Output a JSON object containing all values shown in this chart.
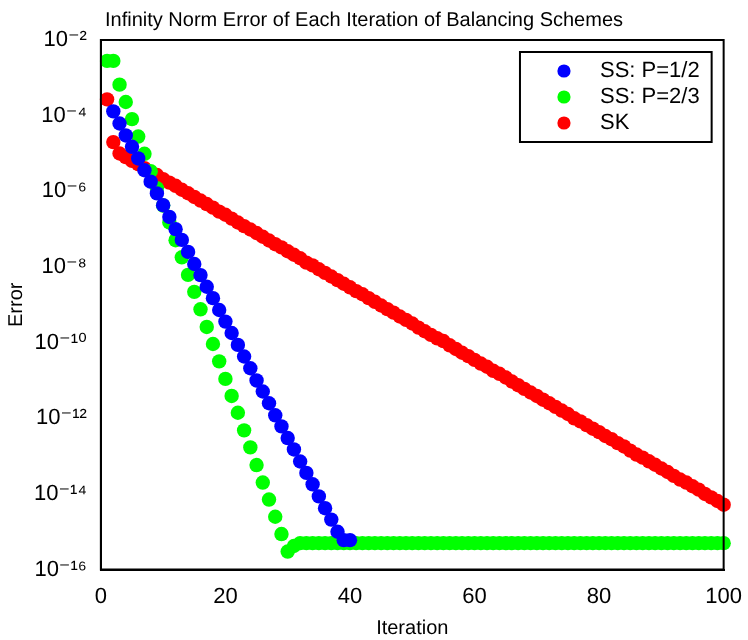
{
  "chart_data": {
    "type": "scatter",
    "title": "Infinity Norm Error of Each Iteration of Balancing Schemes",
    "xlabel": "Iteration",
    "ylabel": "Error",
    "log": "y",
    "grid": false,
    "legend": "top right",
    "marker": "circle",
    "xlim": [
      0,
      100
    ],
    "xticks": [
      0,
      20,
      40,
      60,
      80,
      100
    ],
    "ylim": [
      1e-16,
      0.01
    ],
    "yticks": [
      {
        "value": 1e-16,
        "label": "10⁻¹⁶"
      },
      {
        "value": 1e-14,
        "label": "10⁻¹⁴"
      },
      {
        "value": 1e-12,
        "label": "10⁻¹²"
      },
      {
        "value": 1e-10,
        "label": "10⁻¹⁰"
      },
      {
        "value": 1e-08,
        "label": "10⁻⁸"
      },
      {
        "value": 1e-06,
        "label": "10⁻⁶"
      },
      {
        "value": 0.0001,
        "label": "10⁻⁴"
      },
      {
        "value": 0.01,
        "label": "10⁻²"
      }
    ],
    "series": [
      {
        "name": "SS: P=1/2",
        "color": "#0000ff",
        "x": [
          2,
          3,
          4,
          5,
          6,
          7,
          8,
          9,
          10,
          11,
          12,
          13,
          14,
          15,
          16,
          17,
          18,
          19,
          20,
          21,
          22,
          23,
          24,
          25,
          26,
          27,
          28,
          29,
          30,
          31,
          32,
          33,
          34,
          35,
          36,
          37,
          38,
          39,
          40
        ],
        "values": [
          0.00013,
          6.2e-05,
          3e-05,
          1.5e-05,
          7.4e-06,
          3.6e-06,
          1.8e-06,
          8.8e-07,
          4.3e-07,
          2.1e-07,
          1e-07,
          5.2e-08,
          2.5e-08,
          1.2e-08,
          6.1e-09,
          3e-09,
          1.5e-09,
          7.3e-10,
          3.6e-10,
          1.8e-10,
          8.7e-11,
          4.3e-11,
          2.1e-11,
          1e-11,
          5.1e-12,
          2.5e-12,
          1.2e-12,
          6.1e-13,
          3e-13,
          1.5e-13,
          7.2e-14,
          3.6e-14,
          1.8e-14,
          8.6e-15,
          4.2e-15,
          2.1e-15,
          1e-15,
          6e-16,
          6e-16
        ]
      },
      {
        "name": "SS: P=2/3",
        "color": "#00ff00",
        "x": [
          1,
          2,
          3,
          4,
          5,
          6,
          7,
          8,
          9,
          10,
          11,
          12,
          13,
          14,
          15,
          16,
          17,
          18,
          19,
          20,
          21,
          22,
          23,
          24,
          25,
          26,
          27,
          28,
          29,
          30,
          31,
          32,
          33,
          34,
          35,
          36,
          37,
          38,
          39,
          40,
          41,
          42,
          43,
          44,
          45,
          46,
          47,
          48,
          49,
          50,
          51,
          52,
          53,
          54,
          55,
          56,
          57,
          58,
          59,
          60,
          61,
          62,
          63,
          64,
          65,
          66,
          67,
          68,
          69,
          70,
          71,
          72,
          73,
          74,
          75,
          76,
          77,
          78,
          79,
          80,
          81,
          82,
          83,
          84,
          85,
          86,
          87,
          88,
          89,
          90,
          91,
          92,
          93,
          94,
          95,
          96,
          97,
          98,
          99,
          100
        ],
        "values": [
          0.0028,
          0.0028,
          0.00066,
          0.00023,
          8.1e-05,
          2.8e-05,
          9.8e-06,
          3.4e-06,
          1.2e-06,
          4.2e-07,
          1.5e-07,
          5.1e-08,
          1.8e-08,
          6.2e-09,
          2.2e-09,
          7.6e-10,
          2.6e-10,
          9.2e-11,
          3.2e-11,
          1.1e-11,
          3.9e-12,
          1.4e-12,
          4.8e-13,
          1.7e-13,
          5.8e-14,
          2e-14,
          7.1e-15,
          2.5e-15,
          8.7e-16,
          3e-16,
          4.2e-16,
          5e-16,
          5e-16,
          5e-16,
          5e-16,
          5e-16,
          5e-16,
          5e-16,
          5e-16,
          5e-16,
          5e-16,
          5e-16,
          5e-16,
          5e-16,
          5e-16,
          5e-16,
          5e-16,
          5e-16,
          5e-16,
          5e-16,
          5e-16,
          5e-16,
          5e-16,
          5e-16,
          5e-16,
          5e-16,
          5e-16,
          5e-16,
          5e-16,
          5e-16,
          5e-16,
          5e-16,
          5e-16,
          5e-16,
          5e-16,
          5e-16,
          5e-16,
          5e-16,
          5e-16,
          5e-16,
          5e-16,
          5e-16,
          5e-16,
          5e-16,
          5e-16,
          5e-16,
          5e-16,
          5e-16,
          5e-16,
          5e-16,
          5e-16,
          5e-16,
          5e-16,
          5e-16,
          5e-16,
          5e-16,
          5e-16,
          5e-16,
          5e-16,
          5e-16,
          5e-16,
          5e-16,
          5e-16,
          5e-16,
          5e-16,
          5e-16,
          5e-16,
          5e-16,
          5e-16,
          5e-16
        ]
      },
      {
        "name": "SK",
        "color": "#ff0000",
        "x": [
          1,
          2,
          3,
          4,
          5,
          6,
          7,
          8,
          9,
          10,
          11,
          12,
          13,
          14,
          15,
          16,
          17,
          18,
          19,
          20,
          21,
          22,
          23,
          24,
          25,
          26,
          27,
          28,
          29,
          30,
          31,
          32,
          33,
          34,
          35,
          36,
          37,
          38,
          39,
          40,
          41,
          42,
          43,
          44,
          45,
          46,
          47,
          48,
          49,
          50,
          51,
          52,
          53,
          54,
          55,
          56,
          57,
          58,
          59,
          60,
          61,
          62,
          63,
          64,
          65,
          66,
          67,
          68,
          69,
          70,
          71,
          72,
          73,
          74,
          75,
          76,
          77,
          78,
          79,
          80,
          81,
          82,
          83,
          84,
          85,
          86,
          87,
          88,
          89,
          90,
          91,
          92,
          93,
          94,
          95,
          96,
          97,
          98,
          99,
          100
        ],
        "values": [
          0.00027,
          2e-05,
          1e-05,
          8e-06,
          6.4e-06,
          5.2e-06,
          4.1e-06,
          null,
          2.7e-06,
          2.1e-06,
          1.7e-06,
          1.4e-06,
          1.1e-06,
          8.9e-07,
          7.1e-07,
          5.7e-07,
          4.6e-07,
          3.7e-07,
          2.9e-07,
          2.4e-07,
          1.9e-07,
          1.5e-07,
          1.2e-07,
          9.8e-08,
          7.9e-08,
          6.3e-08,
          5e-08,
          4e-08,
          3.3e-08,
          2.6e-08,
          2.1e-08,
          1.7e-08,
          1.3e-08,
          1.1e-08,
          8.7e-09,
          7e-09,
          5.6e-09,
          4.5e-09,
          3.6e-09,
          2.9e-09,
          2.3e-09,
          1.9e-09,
          1.5e-09,
          1.2e-09,
          9.6e-10,
          7.7e-10,
          6.2e-10,
          4.9e-10,
          4e-10,
          3.2e-10,
          2.5e-10,
          2e-10,
          1.6e-10,
          1.3e-10,
          1.1e-10,
          8.5e-11,
          6.8e-11,
          5.4e-11,
          4.4e-11,
          3.5e-11,
          2.8e-11,
          2.3e-11,
          1.8e-11,
          1.5e-11,
          1.2e-11,
          9.4e-12,
          7.5e-12,
          6e-12,
          4.8e-12,
          3.9e-12,
          3.1e-12,
          2.5e-12,
          2e-12,
          1.6e-12,
          1.3e-12,
          1e-12,
          8.3e-13,
          6.6e-13,
          5.3e-13,
          4.3e-13,
          3.4e-13,
          2.8e-13,
          2.2e-13,
          1.8e-13,
          1.4e-13,
          1.1e-13,
          9.1e-14,
          7.3e-14,
          5.9e-14,
          4.7e-14,
          3.8e-14,
          3e-14,
          2.4e-14,
          2e-14,
          1.6e-14,
          1.3e-14,
          1e-14,
          8.1e-15,
          6.5e-15,
          5.2e-15
        ]
      }
    ]
  }
}
